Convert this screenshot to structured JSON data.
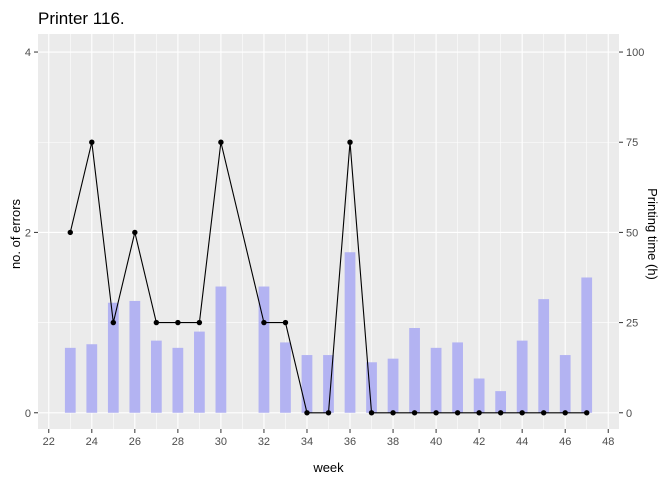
{
  "chart_data": {
    "type": "bar+line",
    "title": "Printer 116.",
    "xlabel": "week",
    "ylabel_left": "no. of errors",
    "ylabel_right": "Printing time (h)",
    "xlim": [
      21.5,
      48.5
    ],
    "ylim_left": [
      -0.18,
      4.2
    ],
    "ylim_right": [
      -4.5,
      105
    ],
    "x_ticks": [
      22,
      24,
      26,
      28,
      30,
      32,
      34,
      36,
      38,
      40,
      42,
      44,
      46,
      48
    ],
    "y_left_ticks": [
      0,
      2,
      4
    ],
    "y_right_ticks": [
      0,
      25,
      50,
      75,
      100
    ],
    "grid": true,
    "colors": {
      "panel": "#ebebeb",
      "grid": "#ffffff",
      "bar": "#b3b3f2",
      "line": "#000000",
      "tick": "#4d4d4d",
      "tickmark": "#333333"
    },
    "bars": {
      "axis": "right",
      "x": [
        23,
        24,
        25,
        26,
        27,
        28,
        29,
        30,
        32,
        33,
        34,
        35,
        36,
        37,
        38,
        39,
        40,
        41,
        42,
        43,
        44,
        45,
        46,
        47
      ],
      "values": [
        18,
        19,
        30.5,
        31,
        20,
        18,
        22.5,
        35,
        35,
        19.5,
        16,
        16,
        44.5,
        14,
        15,
        23.5,
        18,
        19.5,
        9.5,
        6,
        20,
        31.5,
        16,
        37.5
      ]
    },
    "line": {
      "axis": "left",
      "x": [
        23,
        24,
        25,
        26,
        27,
        28,
        29,
        30,
        32,
        33,
        34,
        35,
        36,
        37,
        38,
        39,
        40,
        41,
        42,
        43,
        44,
        45,
        46,
        47
      ],
      "values": [
        2,
        3,
        1,
        2,
        1,
        1,
        1,
        3,
        1,
        1,
        0,
        0,
        3,
        0,
        0,
        0,
        0,
        0,
        0,
        0,
        0,
        0,
        0,
        0
      ]
    }
  }
}
